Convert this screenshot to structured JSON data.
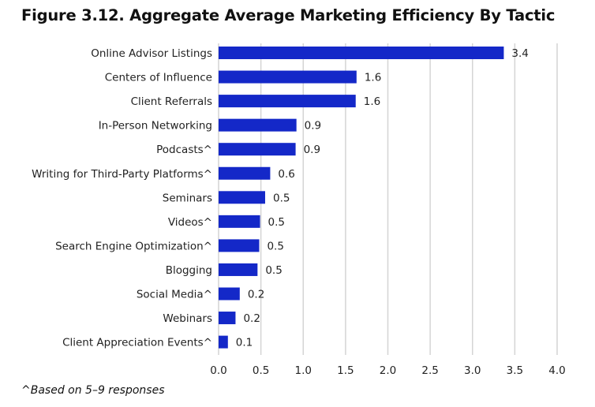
{
  "chart_data": {
    "type": "bar",
    "orientation": "horizontal",
    "title": "Figure 3.12. Aggregate Average Marketing Efficiency By Tactic",
    "categories": [
      "Online Advisor Listings",
      "Centers of Influence",
      "Client Referrals",
      "In-Person Networking",
      "Podcasts^",
      "Writing for Third-Party Platforms^",
      "Seminars",
      "Videos^",
      "Search Engine Optimization^",
      "Blogging",
      "Social Media^",
      "Webinars",
      "Client Appreciation Events^"
    ],
    "values": [
      3.37,
      1.63,
      1.62,
      0.92,
      0.91,
      0.61,
      0.55,
      0.49,
      0.48,
      0.46,
      0.25,
      0.2,
      0.11
    ],
    "data_labels": [
      "3.4",
      "1.6",
      "1.6",
      "0.9",
      "0.9",
      "0.6",
      "0.5",
      "0.5",
      "0.5",
      "0.5",
      "0.2",
      "0.2",
      "0.1"
    ],
    "xlim": [
      0,
      4.0
    ],
    "xticks": [
      "0.0",
      "0.5",
      "1.0",
      "1.5",
      "2.0",
      "2.5",
      "3.0",
      "3.5",
      "4.0"
    ],
    "xlabel": "",
    "ylabel": "",
    "grid": "vertical",
    "bar_color": "#1428c8",
    "grid_color": "#d4d4d4",
    "footnote": "^Based on 5–9 responses"
  }
}
